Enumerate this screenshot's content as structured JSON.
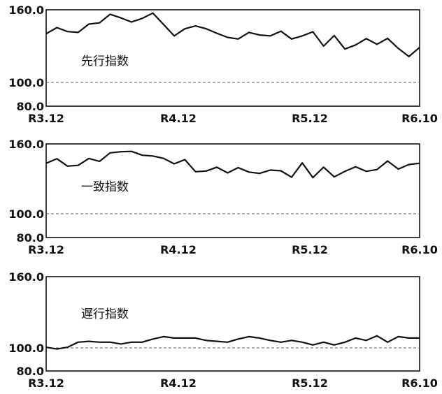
{
  "chart_data": [
    {
      "type": "line",
      "title": "先行指数",
      "ylim": [
        80.0,
        160.0
      ],
      "yticks": [
        "160.0",
        "100.0",
        "80.0"
      ],
      "reference_line": 100.0,
      "xticks": [
        "R3.12",
        "R4.12",
        "R5.12",
        "R6.10"
      ],
      "x_start": "2021-12",
      "x_end": "2024-10",
      "values": [
        140.2,
        145.3,
        142.0,
        141.3,
        148.2,
        149.2,
        156.3,
        153.3,
        149.9,
        152.9,
        157.3,
        147.9,
        138.4,
        144.3,
        146.7,
        144.3,
        140.6,
        137.2,
        135.9,
        141.3,
        139.2,
        138.4,
        142.3,
        135.9,
        138.4,
        141.8,
        130.0,
        138.7,
        127.6,
        131.0,
        136.2,
        131.5,
        136.4,
        128.1,
        121.4,
        128.9
      ]
    },
    {
      "type": "line",
      "title": "一致指数",
      "ylim": [
        80.0,
        160.0
      ],
      "yticks": [
        "160.0",
        "100.0",
        "80.0"
      ],
      "reference_line": 100.0,
      "xticks": [
        "R3.12",
        "R4.12",
        "R5.12",
        "R6.10"
      ],
      "x_start": "2021-12",
      "x_end": "2024-10",
      "values": [
        143.4,
        147.3,
        140.9,
        141.6,
        147.5,
        145.0,
        152.3,
        153.3,
        153.6,
        150.3,
        149.6,
        147.6,
        142.9,
        146.5,
        136.1,
        136.7,
        140.0,
        135.1,
        139.6,
        135.8,
        134.7,
        137.5,
        136.9,
        131.4,
        143.7,
        131.0,
        140.0,
        131.7,
        136.4,
        140.3,
        136.4,
        138.0,
        145.3,
        138.4,
        142.3,
        143.4
      ]
    },
    {
      "type": "line",
      "title": "遅行指数",
      "ylim": [
        80.0,
        160.0
      ],
      "yticks": [
        "160.0",
        "100.0",
        "80.0"
      ],
      "reference_line": 100.0,
      "xticks": [
        "R3.12",
        "R4.12",
        "R5.12",
        "R6.10"
      ],
      "x_start": "2021-12",
      "x_end": "2024-10",
      "values": [
        100.5,
        99.0,
        100.5,
        104.8,
        105.5,
        104.8,
        104.8,
        103.3,
        104.8,
        104.8,
        107.5,
        109.5,
        108.3,
        108.3,
        108.3,
        106.3,
        105.5,
        104.8,
        107.5,
        109.5,
        108.3,
        106.3,
        104.8,
        106.3,
        104.8,
        102.5,
        104.8,
        102.5,
        104.8,
        108.3,
        106.3,
        110.2,
        104.8,
        109.5,
        108.3,
        108.3
      ]
    }
  ]
}
